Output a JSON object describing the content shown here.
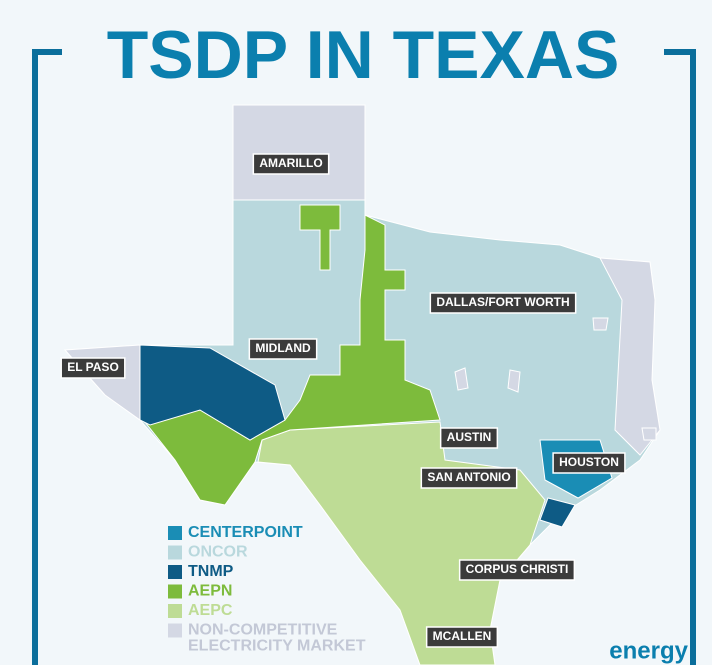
{
  "header": {
    "title": "TSDP IN TEXAS"
  },
  "cities": [
    {
      "label": "AMARILLO"
    },
    {
      "label": "DALLAS/FORT WORTH"
    },
    {
      "label": "MIDLAND"
    },
    {
      "label": "EL PASO"
    },
    {
      "label": "AUSTIN"
    },
    {
      "label": "HOUSTON"
    },
    {
      "label": "SAN ANTONIO"
    },
    {
      "label": "CORPUS CHRISTI"
    },
    {
      "label": "MCALLEN"
    }
  ],
  "legend": [
    {
      "label": "CENTERPOINT",
      "color": "#1a8db5"
    },
    {
      "label": "ONCOR",
      "color": "#b9d8dd"
    },
    {
      "label": "TNMP",
      "color": "#0e5b85"
    },
    {
      "label": "AEPN",
      "color": "#7dbb3c"
    },
    {
      "label": "AEPC",
      "color": "#bedc95"
    },
    {
      "label_lines": [
        "NON-COMPETITIVE",
        "ELECTRICITY MARKET"
      ],
      "color": "#d4d8e4"
    }
  ],
  "footer": {
    "logo": "energy"
  }
}
